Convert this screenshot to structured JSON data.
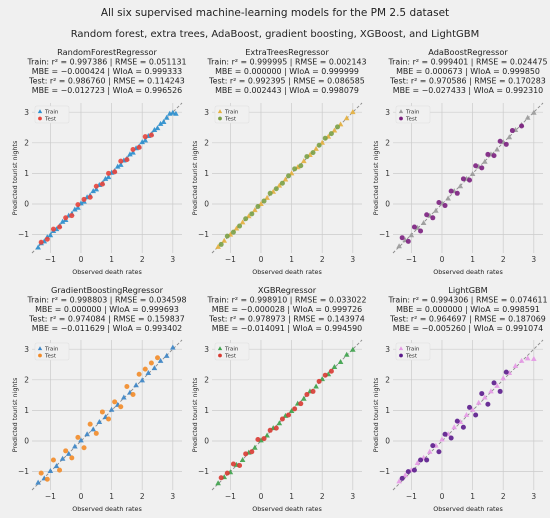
{
  "figure": {
    "title": "All six supervised machine-learning models for the PM 2.5 dataset",
    "subtitle": "Random forest, extra trees, AdaBoost, gradient boosting, XGBoost, and LightGBM"
  },
  "chart_data": [
    {
      "type": "scatter",
      "title": "RandomForestRegressor",
      "stats": [
        "Train: r² = 0.997386 | RMSE = 0.051131",
        "MBE = −0.000424 | WIoA = 0.999333",
        "Test: r² = 0.986760 | RMSE = 0.114243",
        "MBE = −0.012723 | WIoA = 0.996526"
      ],
      "xlabel": "Observed death rates",
      "ylabel": "Predicted tourist nights",
      "xlim": [
        -1.6,
        3.3
      ],
      "ylim": [
        -1.6,
        3.3
      ],
      "xticks": [
        -1,
        0,
        1,
        2,
        3
      ],
      "yticks": [
        -1,
        0,
        1,
        2,
        3
      ],
      "grid": true,
      "legend_position": "top-left",
      "reference_line": "y = x",
      "series": [
        {
          "name": "Train",
          "marker": "triangle",
          "color": "#2c8fce",
          "x": [
            -1.4,
            -1.3,
            -1.2,
            -1.1,
            -1.0,
            -0.9,
            -0.8,
            -0.7,
            -0.6,
            -0.5,
            -0.4,
            -0.3,
            -0.2,
            -0.1,
            0.0,
            0.1,
            0.2,
            0.3,
            0.4,
            0.5,
            0.6,
            0.7,
            0.8,
            0.9,
            1.0,
            1.1,
            1.2,
            1.3,
            1.4,
            1.5,
            1.6,
            1.7,
            1.8,
            1.9,
            2.0,
            2.1,
            2.2,
            2.3,
            2.4,
            2.5,
            2.6,
            2.7,
            2.8,
            2.9,
            3.0,
            3.1
          ],
          "y": [
            -1.42,
            -1.28,
            -1.22,
            -1.08,
            -1.02,
            -0.88,
            -0.82,
            -0.72,
            -0.58,
            -0.52,
            -0.38,
            -0.32,
            -0.18,
            -0.12,
            0.02,
            0.08,
            0.22,
            0.28,
            0.42,
            0.48,
            0.62,
            0.68,
            0.82,
            0.88,
            1.02,
            1.08,
            1.22,
            1.28,
            1.42,
            1.48,
            1.62,
            1.68,
            1.82,
            1.88,
            2.02,
            2.08,
            2.22,
            2.28,
            2.42,
            2.48,
            2.62,
            2.68,
            2.82,
            2.95,
            2.98,
            2.95
          ]
        },
        {
          "name": "Test",
          "marker": "circle",
          "color": "#e8453c",
          "x": [
            -1.3,
            -1.1,
            -0.9,
            -0.7,
            -0.5,
            -0.3,
            -0.1,
            0.1,
            0.3,
            0.5,
            0.7,
            0.9,
            1.1,
            1.3,
            1.5,
            1.7,
            1.9,
            2.1,
            2.3
          ],
          "y": [
            -1.25,
            -1.15,
            -0.82,
            -0.75,
            -0.45,
            -0.38,
            -0.02,
            0.15,
            0.22,
            0.58,
            0.65,
            1.0,
            1.05,
            1.4,
            1.45,
            1.78,
            1.85,
            2.2,
            2.25
          ]
        }
      ]
    },
    {
      "type": "scatter",
      "title": "ExtraTreesRegressor",
      "stats": [
        "Train: r² = 0.999995 | RMSE = 0.002143",
        "MBE = 0.000000 | WIoA = 0.999999",
        "Test: r² = 0.992395 | RMSE = 0.086585",
        "MBE = 0.002443 | WIoA = 0.998079"
      ],
      "xlabel": "Observed death rates",
      "ylabel": "Predicted tourist nights",
      "xlim": [
        -1.6,
        3.3
      ],
      "ylim": [
        -1.6,
        3.3
      ],
      "xticks": [
        -1,
        0,
        1,
        2,
        3
      ],
      "yticks": [
        -1,
        0,
        1,
        2,
        3
      ],
      "grid": true,
      "legend_position": "top-left",
      "reference_line": "y = x",
      "series": [
        {
          "name": "Train",
          "marker": "triangle",
          "color": "#e5b140",
          "x": [
            -1.4,
            -1.2,
            -1.0,
            -0.8,
            -0.6,
            -0.4,
            -0.2,
            0.0,
            0.2,
            0.4,
            0.6,
            0.8,
            1.0,
            1.2,
            1.4,
            1.6,
            1.8,
            2.0,
            2.2,
            2.4,
            2.6,
            2.8,
            3.0
          ],
          "y": [
            -1.4,
            -1.2,
            -1.0,
            -0.8,
            -0.6,
            -0.4,
            -0.2,
            0.0,
            0.2,
            0.4,
            0.6,
            0.8,
            1.0,
            1.2,
            1.4,
            1.6,
            1.8,
            2.0,
            2.2,
            2.4,
            2.6,
            2.8,
            3.0
          ]
        },
        {
          "name": "Test",
          "marker": "circle",
          "color": "#7aa046",
          "x": [
            -1.3,
            -1.1,
            -0.9,
            -0.7,
            -0.5,
            -0.3,
            -0.1,
            0.1,
            0.3,
            0.5,
            0.7,
            0.9,
            1.1,
            1.3,
            1.5,
            1.7,
            1.9,
            2.1,
            2.3,
            2.5
          ],
          "y": [
            -1.32,
            -1.05,
            -0.92,
            -0.72,
            -0.48,
            -0.32,
            -0.08,
            0.1,
            0.35,
            0.5,
            0.68,
            0.92,
            1.15,
            1.25,
            1.55,
            1.68,
            1.92,
            2.15,
            2.3,
            2.52
          ]
        }
      ]
    },
    {
      "type": "scatter",
      "title": "AdaBoostRegressor",
      "stats": [
        "Train: r² = 0.999401 | RMSE = 0.024475",
        "MBE = 0.000673 | WIoA = 0.999850",
        "Test: r² = 0.970586 | RMSE = 0.170283",
        "MBE = −0.027433 | WIoA = 0.992310"
      ],
      "xlabel": "Observed death rates",
      "ylabel": "Predicted tourist nights",
      "xlim": [
        -1.6,
        3.3
      ],
      "ylim": [
        -1.6,
        3.3
      ],
      "xticks": [
        -1,
        0,
        1,
        2,
        3
      ],
      "yticks": [
        -1,
        0,
        1,
        2,
        3
      ],
      "grid": true,
      "legend_position": "top-left",
      "reference_line": "y = x",
      "series": [
        {
          "name": "Train",
          "marker": "triangle",
          "color": "#9b9b9b",
          "x": [
            -1.4,
            -1.2,
            -1.0,
            -0.8,
            -0.6,
            -0.4,
            -0.2,
            0.0,
            0.2,
            0.4,
            0.6,
            0.8,
            1.0,
            1.2,
            1.4,
            1.6,
            1.8,
            2.0,
            2.2,
            2.4,
            2.6,
            2.8,
            3.0
          ],
          "y": [
            -1.38,
            -1.18,
            -1.02,
            -0.78,
            -0.62,
            -0.38,
            -0.22,
            0.02,
            0.18,
            0.42,
            0.58,
            0.82,
            0.98,
            1.22,
            1.38,
            1.62,
            1.78,
            2.02,
            2.18,
            2.42,
            2.58,
            2.82,
            2.98
          ]
        },
        {
          "name": "Test",
          "marker": "circle",
          "color": "#7b1f7f",
          "x": [
            -1.3,
            -1.1,
            -0.9,
            -0.7,
            -0.5,
            -0.3,
            -0.1,
            0.1,
            0.3,
            0.5,
            0.7,
            0.9,
            1.1,
            1.3,
            1.5,
            1.7,
            1.9,
            2.1,
            2.3,
            2.6
          ],
          "y": [
            -1.1,
            -1.22,
            -0.75,
            -0.88,
            -0.35,
            -0.45,
            0.05,
            -0.05,
            0.42,
            0.35,
            0.82,
            0.78,
            1.25,
            1.18,
            1.62,
            1.58,
            2.05,
            1.95,
            2.4,
            2.55
          ]
        }
      ]
    },
    {
      "type": "scatter",
      "title": "GradientBoostingRegressor",
      "stats": [
        "Train: r² = 0.998803 | RMSE = 0.034598",
        "MBE = 0.000000 | WIoA = 0.999693",
        "Test: r² = 0.974084 | RMSE = 0.159837",
        "MBE = −0.011629 | WIoA = 0.993402"
      ],
      "xlabel": "Observed death rates",
      "ylabel": "Predicted tourist nights",
      "xlim": [
        -1.6,
        3.3
      ],
      "ylim": [
        -1.6,
        3.3
      ],
      "xticks": [
        -1,
        0,
        1,
        2,
        3
      ],
      "yticks": [
        -1,
        0,
        1,
        2,
        3
      ],
      "grid": true,
      "legend_position": "top-left",
      "reference_line": "y = x",
      "series": [
        {
          "name": "Train",
          "marker": "triangle",
          "color": "#3d86c6",
          "x": [
            -1.4,
            -1.2,
            -1.0,
            -0.8,
            -0.6,
            -0.4,
            -0.2,
            0.0,
            0.2,
            0.4,
            0.6,
            0.8,
            1.0,
            1.2,
            1.4,
            1.6,
            1.8,
            2.0,
            2.2,
            2.4,
            2.6,
            2.8,
            3.0
          ],
          "y": [
            -1.36,
            -1.22,
            -0.98,
            -0.82,
            -0.58,
            -0.42,
            -0.18,
            0.02,
            0.22,
            0.38,
            0.62,
            0.78,
            1.02,
            1.18,
            1.42,
            1.58,
            1.82,
            1.98,
            2.22,
            2.38,
            2.62,
            2.78,
            3.05
          ]
        },
        {
          "name": "Test",
          "marker": "circle",
          "color": "#f28b28",
          "x": [
            -1.3,
            -1.1,
            -0.9,
            -0.7,
            -0.5,
            -0.3,
            -0.1,
            0.1,
            0.3,
            0.5,
            0.7,
            0.9,
            1.1,
            1.3,
            1.5,
            1.7,
            1.9,
            2.1,
            2.3,
            2.5
          ],
          "y": [
            -1.05,
            -1.25,
            -0.62,
            -0.95,
            -0.32,
            -0.55,
            0.12,
            -0.22,
            0.55,
            0.25,
            0.95,
            0.72,
            1.28,
            1.12,
            1.78,
            1.52,
            2.18,
            2.35,
            2.55,
            2.72
          ]
        }
      ]
    },
    {
      "type": "scatter",
      "title": "XGBRegressor",
      "stats": [
        "Train: r² = 0.998910 | RMSE = 0.033022",
        "MBE = −0.000028 | WIoA = 0.999726",
        "Test: r² = 0.978973 | RMSE = 0.143974",
        "MBE = −0.014091 | WIoA = 0.994590"
      ],
      "xlabel": "Observed death rates",
      "ylabel": "Predicted tourist nights",
      "xlim": [
        -1.6,
        3.3
      ],
      "ylim": [
        -1.6,
        3.3
      ],
      "xticks": [
        -1,
        0,
        1,
        2,
        3
      ],
      "yticks": [
        -1,
        0,
        1,
        2,
        3
      ],
      "grid": true,
      "legend_position": "top-left",
      "reference_line": "y = x",
      "series": [
        {
          "name": "Train",
          "marker": "triangle",
          "color": "#3fa34d",
          "x": [
            -1.4,
            -1.2,
            -1.0,
            -0.8,
            -0.6,
            -0.4,
            -0.2,
            0.0,
            0.2,
            0.4,
            0.6,
            0.8,
            1.0,
            1.2,
            1.4,
            1.6,
            1.8,
            2.0,
            2.2,
            2.4,
            2.6,
            2.8,
            3.0
          ],
          "y": [
            -1.38,
            -1.18,
            -1.02,
            -0.78,
            -0.62,
            -0.38,
            -0.22,
            0.02,
            0.18,
            0.42,
            0.58,
            0.82,
            0.98,
            1.22,
            1.38,
            1.62,
            1.78,
            2.02,
            2.18,
            2.42,
            2.58,
            2.82,
            2.98
          ]
        },
        {
          "name": "Test",
          "marker": "circle",
          "color": "#d83a32",
          "x": [
            -1.3,
            -1.1,
            -0.9,
            -0.7,
            -0.5,
            -0.3,
            -0.1,
            0.1,
            0.3,
            0.5,
            0.7,
            0.9,
            1.1,
            1.3,
            1.5,
            1.7,
            1.9,
            2.1,
            2.3
          ],
          "y": [
            -1.2,
            -1.05,
            -0.75,
            -0.8,
            -0.42,
            -0.35,
            0.05,
            0.08,
            0.35,
            0.42,
            0.72,
            0.85,
            1.05,
            1.22,
            1.52,
            1.62,
            1.95,
            2.15,
            2.28
          ]
        }
      ]
    },
    {
      "type": "scatter",
      "title": "LightGBM",
      "stats": [
        "Train: r² = 0.994306 | RMSE = 0.074611",
        "MBE = 0.000000 | WIoA = 0.998591",
        "Test: r² = 0.964697 | RMSE = 0.187069",
        "MBE = −0.005260 | WIoA = 0.991074"
      ],
      "xlabel": "Observed death rates",
      "ylabel": "Predicted tourist nights",
      "xlim": [
        -1.6,
        3.3
      ],
      "ylim": [
        -1.6,
        3.3
      ],
      "xticks": [
        -1,
        0,
        1,
        2,
        3
      ],
      "yticks": [
        -1,
        0,
        1,
        2,
        3
      ],
      "grid": true,
      "legend_position": "top-left",
      "reference_line": "y = x",
      "series": [
        {
          "name": "Train",
          "marker": "triangle",
          "color": "#e59ae5",
          "x": [
            -1.4,
            -1.2,
            -1.0,
            -0.8,
            -0.6,
            -0.4,
            -0.2,
            0.0,
            0.2,
            0.4,
            0.6,
            0.8,
            1.0,
            1.2,
            1.4,
            1.6,
            1.8,
            2.0,
            2.2,
            2.4,
            2.6,
            2.8,
            3.0
          ],
          "y": [
            -1.32,
            -1.12,
            -0.95,
            -0.72,
            -0.55,
            -0.35,
            -0.15,
            0.05,
            0.22,
            0.45,
            0.62,
            0.85,
            1.02,
            1.25,
            1.42,
            1.62,
            1.8,
            2.05,
            2.22,
            2.45,
            2.62,
            2.7,
            2.68
          ]
        },
        {
          "name": "Test",
          "marker": "circle",
          "color": "#5b1b8c",
          "x": [
            -1.3,
            -1.1,
            -0.9,
            -0.7,
            -0.5,
            -0.3,
            -0.1,
            0.1,
            0.3,
            0.5,
            0.7,
            0.9,
            1.1,
            1.3,
            1.5,
            1.7,
            1.9,
            2.1
          ],
          "y": [
            -1.22,
            -1.0,
            -0.95,
            -0.62,
            -0.62,
            -0.15,
            -0.35,
            0.22,
            0.1,
            0.65,
            0.45,
            1.1,
            0.85,
            1.55,
            1.2,
            1.9,
            1.62,
            2.25
          ]
        }
      ]
    }
  ]
}
